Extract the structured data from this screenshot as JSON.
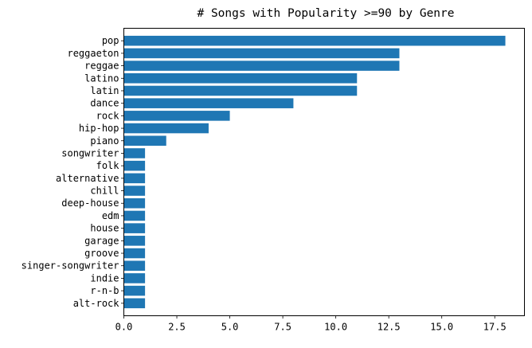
{
  "chart_data": {
    "type": "bar",
    "orientation": "horizontal",
    "title": "# Songs with Popularity >=90 by Genre",
    "xlabel": "",
    "ylabel": "",
    "categories": [
      "pop",
      "reggaeton",
      "reggae",
      "latino",
      "latin",
      "dance",
      "rock",
      "hip-hop",
      "piano",
      "songwriter",
      "folk",
      "alternative",
      "chill",
      "deep-house",
      "edm",
      "house",
      "garage",
      "groove",
      "singer-songwriter",
      "indie",
      "r-n-b",
      "alt-rock"
    ],
    "values": [
      18,
      13,
      13,
      11,
      11,
      8,
      5,
      4,
      2,
      1,
      1,
      1,
      1,
      1,
      1,
      1,
      1,
      1,
      1,
      1,
      1,
      1
    ],
    "xlim": [
      0,
      18.9
    ],
    "xticks": [
      0.0,
      2.5,
      5.0,
      7.5,
      10.0,
      12.5,
      15.0,
      17.5
    ],
    "xtick_labels": [
      "0.0",
      "2.5",
      "5.0",
      "7.5",
      "10.0",
      "12.5",
      "15.0",
      "17.5"
    ],
    "grid": false,
    "legend": "none",
    "bar_color": "#1f77b4"
  }
}
